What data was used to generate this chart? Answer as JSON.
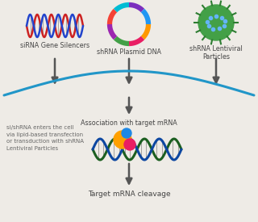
{
  "bg_color": "#eeebe6",
  "siRNA_label": "siRNA Gene Silencers",
  "shrna_plasmid_label": "shRNA Plasmid DNA",
  "shrna_lentiviral_label": "shRNA Lentiviral\nParticles",
  "association_label": "Association with target mRNA",
  "side_label": "si/shRNA enters the cell\nvia lipid-based transfection\nor transduction with shRNA\nLentiviral Particles",
  "cleavage_label": "Target mRNA cleavage",
  "arrow_color": "#555555",
  "cell_border_color": "#2196c8",
  "font_size_labels": 5.8,
  "font_size_side": 5.0,
  "font_size_cleavage": 6.5
}
